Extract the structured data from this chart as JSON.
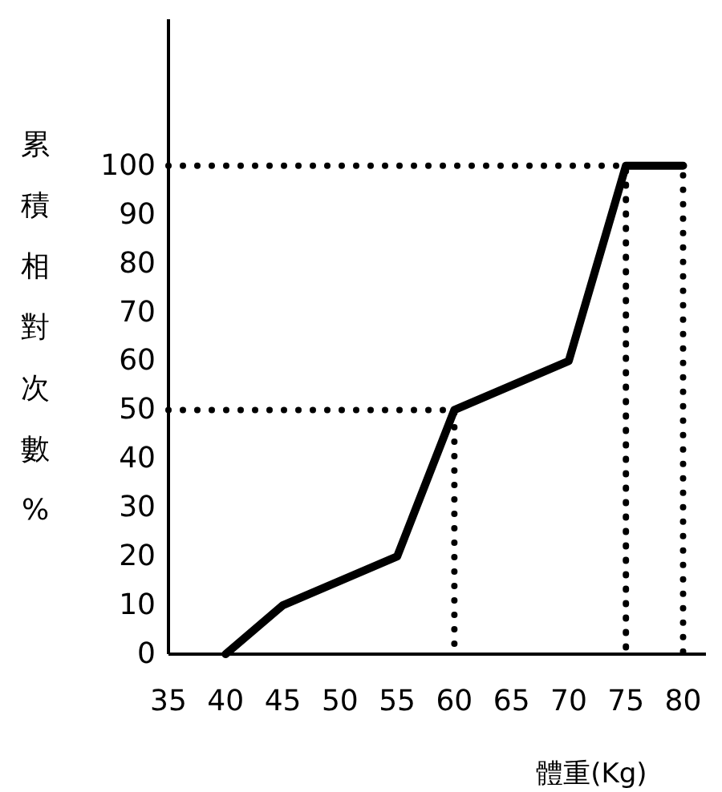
{
  "chart_data": {
    "type": "line",
    "xlabel": "體重(Kg)",
    "ylabel": "累積相對次數%",
    "xlim": [
      35,
      82
    ],
    "ylim": [
      0,
      130
    ],
    "xticks": [
      35,
      40,
      45,
      50,
      55,
      60,
      65,
      70,
      75,
      80
    ],
    "yticks": [
      0,
      10,
      20,
      30,
      40,
      50,
      60,
      70,
      80,
      90,
      100
    ],
    "series": [
      {
        "color": "#000000",
        "line_style": "solid",
        "x": [
          40,
          45,
          55,
          60,
          70,
          75,
          80
        ],
        "values": [
          0,
          10,
          20,
          50,
          60,
          100,
          100
        ]
      },
      {
        "color": "#000000",
        "line_style": "dotted",
        "x": [
          35,
          60,
          60
        ],
        "values": [
          50,
          50,
          0
        ]
      },
      {
        "color": "#000000",
        "line_style": "dotted",
        "x": [
          35,
          75,
          75,
          75,
          80,
          80
        ],
        "values": [
          100,
          100,
          0,
          100,
          100,
          0
        ]
      }
    ]
  }
}
